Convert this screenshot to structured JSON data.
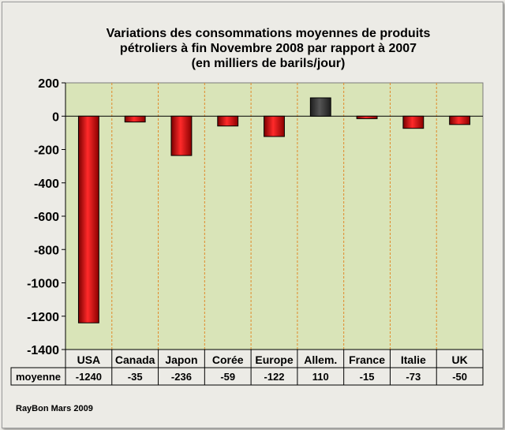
{
  "chart_data": {
    "type": "bar",
    "title_lines": [
      "Variations des consommations moyennes  de produits",
      "pétroliers à fin Novembre 2008 par rapport à 2007",
      "(en milliers de barils/jour)"
    ],
    "categories": [
      "USA",
      "Canada",
      "Japon",
      "Corée",
      "Europe",
      "Allem.",
      "France",
      "Italie",
      "UK"
    ],
    "series": [
      {
        "name": "moyenne",
        "values": [
          -1240,
          -35,
          -236,
          -59,
          -122,
          110,
          -15,
          -73,
          -50
        ]
      }
    ],
    "table_values": [
      "-1240",
      "-35",
      "-236",
      "-59",
      "-122",
      "110",
      "-15",
      "-73",
      "-50"
    ],
    "ylim": [
      -1400,
      200
    ],
    "yticks": [
      200,
      0,
      -200,
      -400,
      -600,
      -800,
      -1000,
      -1200,
      -1400
    ],
    "ytick_labels": [
      "200",
      "0",
      "-200",
      "-400",
      "-600",
      "-800",
      "-1000",
      "-1200",
      "-1400"
    ],
    "grid": "vertical-dashed",
    "colors": {
      "negative": "#d40000",
      "positive": "#3c3c3c",
      "plot_bg": "#d9e4b8",
      "grid": "#e08a2a"
    }
  },
  "footer": "RayBon  Mars 2009"
}
